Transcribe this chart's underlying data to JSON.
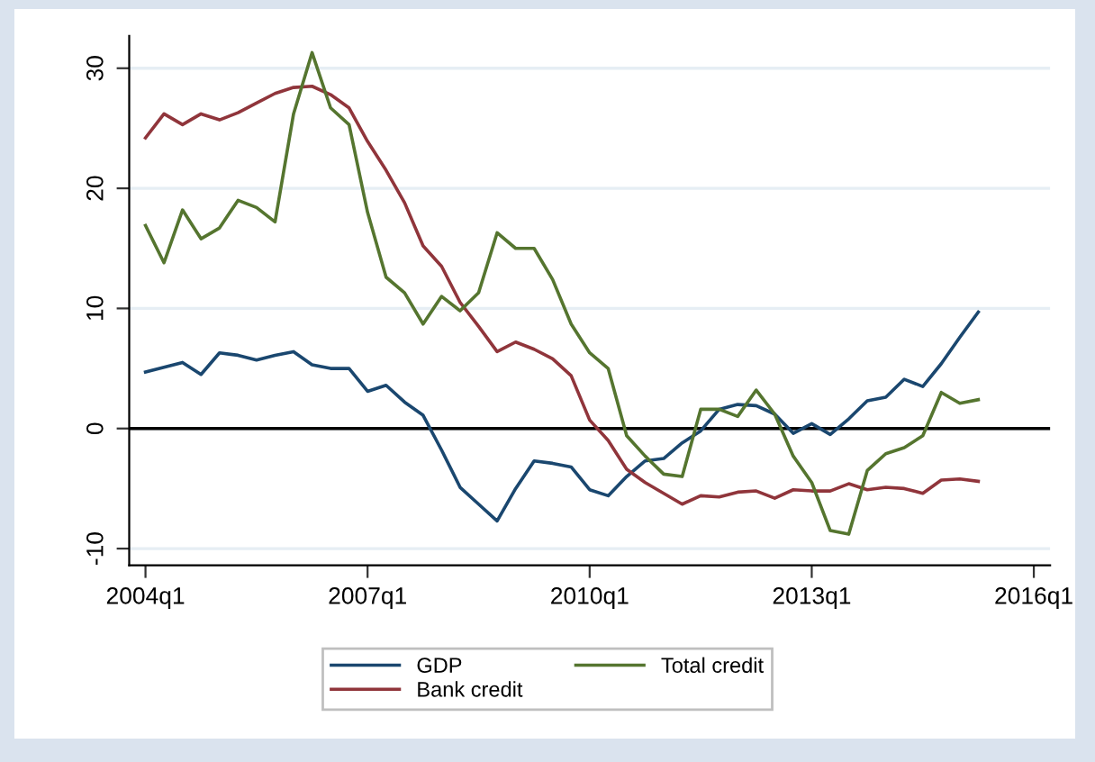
{
  "chart_data": {
    "type": "line",
    "categories": [
      "2004q1",
      null,
      null,
      null,
      null,
      null,
      null,
      null,
      null,
      null,
      null,
      null,
      "2007q1",
      null,
      null,
      null,
      null,
      null,
      null,
      null,
      null,
      null,
      null,
      null,
      "2010q1",
      null,
      null,
      null,
      null,
      null,
      null,
      null,
      null,
      null,
      null,
      null,
      "2013q1",
      null,
      null,
      null,
      null,
      null,
      null,
      null,
      null,
      null,
      null,
      null,
      "2016q1"
    ],
    "series": [
      {
        "name": "GDP",
        "color": "#1a476f",
        "values": [
          4.7,
          5.1,
          5.5,
          4.5,
          6.3,
          6.1,
          5.7,
          6.1,
          6.4,
          5.3,
          5.0,
          5.0,
          3.1,
          3.6,
          2.2,
          1.1,
          -1.8,
          -4.9,
          -6.3,
          -7.7,
          -5.0,
          -2.7,
          -2.9,
          -3.2,
          -5.1,
          -5.6,
          -4.0,
          -2.7,
          -2.5,
          -1.2,
          -0.2,
          1.6,
          2.0,
          1.9,
          1.2,
          -0.4,
          0.4,
          -0.5,
          0.8,
          2.3,
          2.6,
          4.1,
          3.5,
          5.4,
          7.6,
          9.7,
          null,
          null,
          null
        ]
      },
      {
        "name": "Bank credit",
        "color": "#90353b",
        "values": [
          24.2,
          26.2,
          25.3,
          26.2,
          25.7,
          26.3,
          27.1,
          27.9,
          28.4,
          28.5,
          27.8,
          26.7,
          23.9,
          21.5,
          18.8,
          15.2,
          13.5,
          10.5,
          8.5,
          6.4,
          7.2,
          6.6,
          5.8,
          4.4,
          0.7,
          -1.0,
          -3.4,
          -4.5,
          -5.4,
          -6.3,
          -5.6,
          -5.7,
          -5.3,
          -5.2,
          -5.8,
          -5.1,
          -5.2,
          -5.2,
          -4.6,
          -5.1,
          -4.9,
          -5.0,
          -5.4,
          -4.3,
          -4.2,
          -4.4,
          null,
          null,
          null
        ]
      },
      {
        "name": "Total credit",
        "color": "#55752f",
        "values": [
          16.9,
          13.8,
          18.2,
          15.8,
          16.7,
          19.0,
          18.4,
          17.2,
          26.2,
          31.3,
          26.7,
          25.3,
          18.0,
          12.6,
          11.3,
          8.7,
          11.0,
          9.8,
          11.3,
          16.3,
          15.0,
          15.0,
          12.4,
          8.7,
          6.3,
          5.0,
          -0.6,
          -2.3,
          -3.8,
          -4.0,
          1.6,
          1.6,
          1.0,
          3.2,
          1.2,
          -2.3,
          -4.5,
          -8.5,
          -8.8,
          -3.5,
          -2.1,
          -1.6,
          -0.6,
          3.0,
          2.1,
          2.4,
          null,
          null,
          null
        ]
      }
    ],
    "ylim": [
      -11.4,
      32.7
    ],
    "yticks": [
      {
        "value": -10,
        "label": "-10"
      },
      0,
      10,
      20,
      30
    ],
    "ref_lines": [
      {
        "axis": "y",
        "value": 0,
        "color": "#000000"
      }
    ],
    "grid": "y",
    "legend": "bottom",
    "marker": "none",
    "line_style": "solid"
  }
}
